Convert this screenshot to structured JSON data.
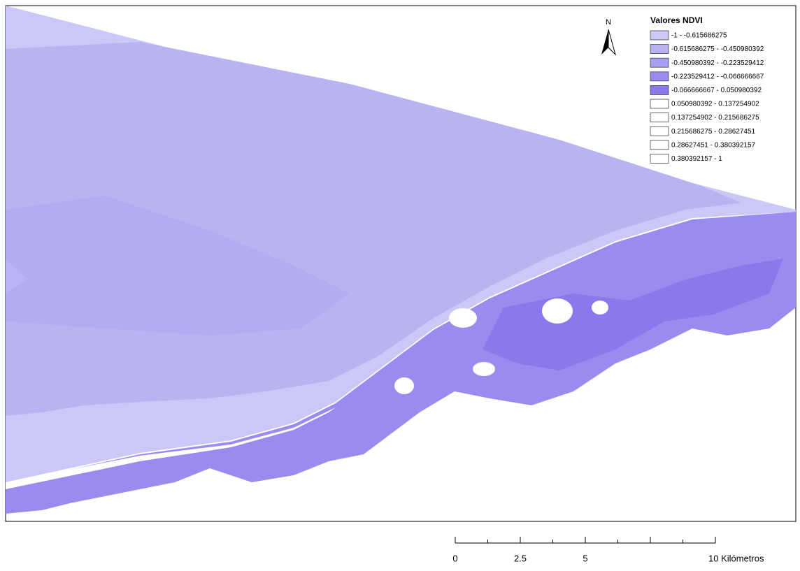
{
  "legend": {
    "title": "Valores NDVI",
    "classes": [
      {
        "label": "-1 - -0.615686275",
        "color": "#cbc8f7"
      },
      {
        "label": "-0.615686275 - -0.450980392",
        "color": "#b9b3f2"
      },
      {
        "label": "-0.450980392 - -0.223529412",
        "color": "#a89ff0"
      },
      {
        "label": "-0.223529412 - -0.066666667",
        "color": "#998cee"
      },
      {
        "label": "-0.066666667 - 0.050980392",
        "color": "#8a79ec"
      },
      {
        "label": "0.050980392 - 0.137254902",
        "color": "#ffffff"
      },
      {
        "label": "0.137254902 - 0.215686275",
        "color": "#ffffff"
      },
      {
        "label": "0.215686275 - 0.28627451",
        "color": "#ffffff"
      },
      {
        "label": "0.28627451 - 0.380392157",
        "color": "#ffffff"
      },
      {
        "label": "0.380392157 - 1",
        "color": "#ffffff"
      }
    ]
  },
  "north_arrow": {
    "label": "N"
  },
  "scale_bar": {
    "labels": [
      "0",
      "2.5",
      "5",
      "10 Kilómetros"
    ]
  }
}
